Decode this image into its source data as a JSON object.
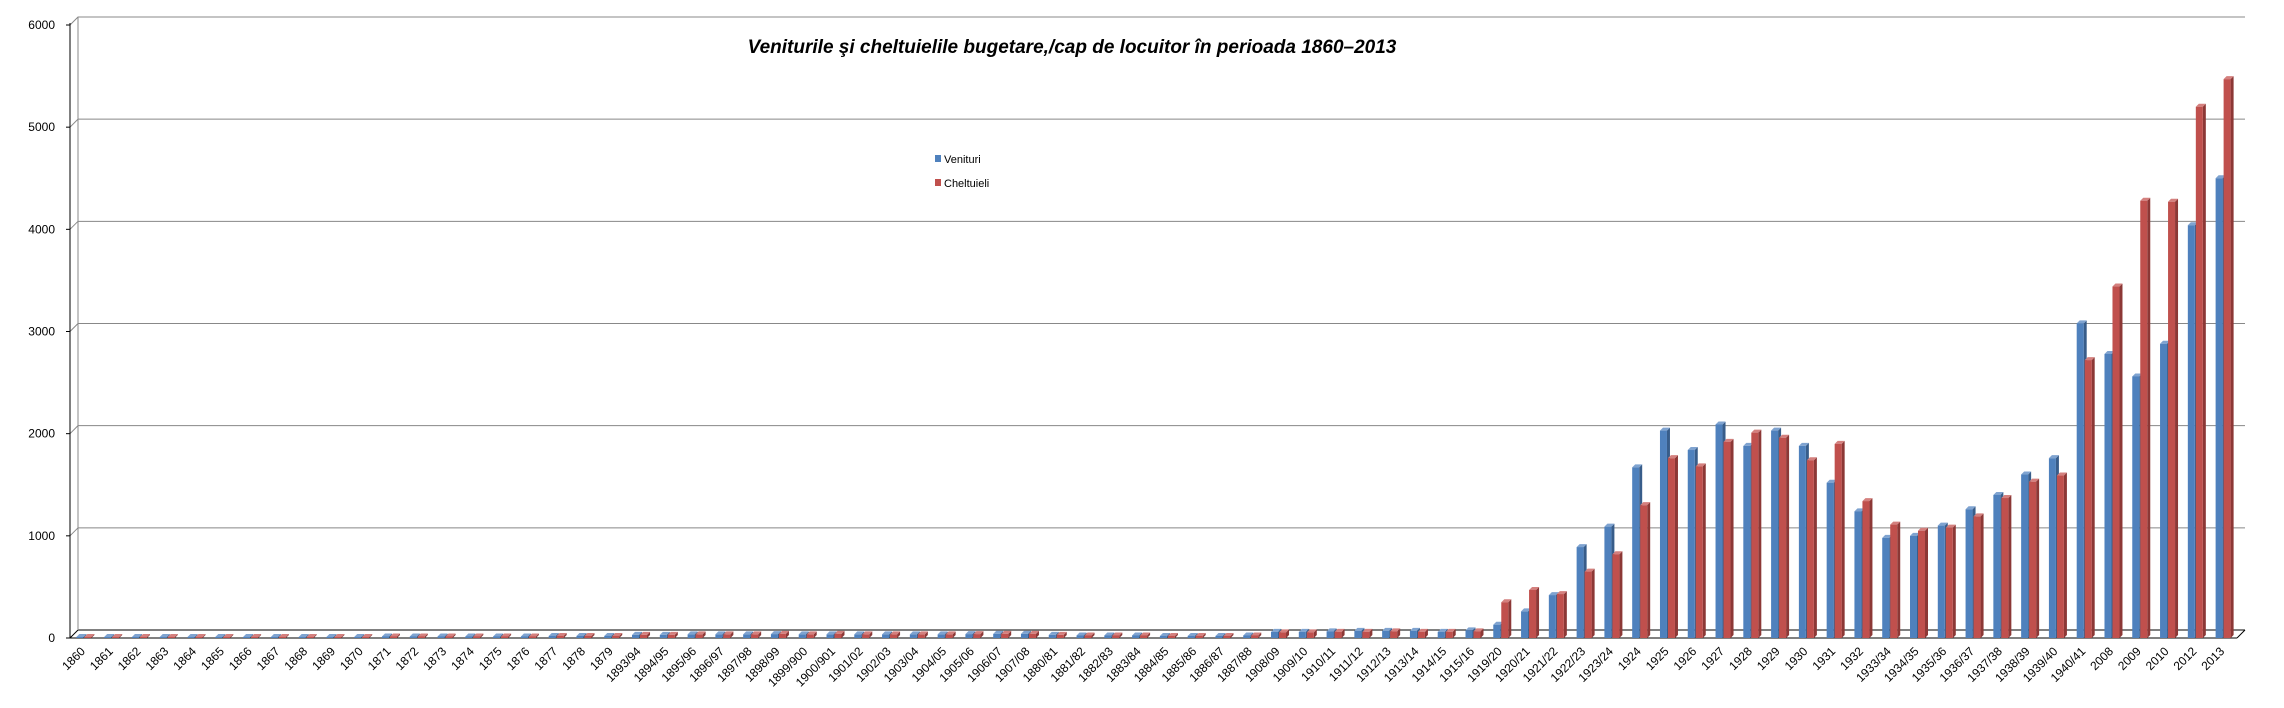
{
  "chart_data": {
    "type": "bar",
    "title": "Veniturile şi  cheltuielile bugetare,/cap de locuitor  în perioada 1860–2013",
    "xlabel": "",
    "ylabel": "",
    "ylim": [
      0,
      6000
    ],
    "yticks": [
      0,
      1000,
      2000,
      3000,
      4000,
      5000,
      6000
    ],
    "grid": true,
    "legend_position": "top-center",
    "colors": {
      "venituri": "#4F81BD",
      "cheltuieli": "#C0504D"
    },
    "categories": [
      "1860",
      "1861",
      "1862",
      "1863",
      "1864",
      "1865",
      "1866",
      "1867",
      "1868",
      "1869",
      "1870",
      "1871",
      "1872",
      "1873",
      "1874",
      "1875",
      "1876",
      "1877",
      "1878",
      "1879",
      "1893/94",
      "1894/95",
      "1895/96",
      "1896/97",
      "1897/98",
      "1898/99",
      "1899/900",
      "1900/901",
      "1901/02",
      "1902/03",
      "1903/04",
      "1904/05",
      "1905/06",
      "1906/07",
      "1907/08",
      "1880/81",
      "1881/82",
      "1882/83",
      "1883/84",
      "1884/85",
      "1885/86",
      "1886/87",
      "1887/88",
      "1908/09",
      "1909/10",
      "1910/11",
      "1911/12",
      "1912/13",
      "1913/14",
      "1914/15",
      "1915/16",
      "1919/20",
      "1920/21",
      "1921/22",
      "1922/23",
      "1923/24",
      "1924",
      "1925",
      "1926",
      "1927",
      "1928",
      "1929",
      "1930",
      "1931",
      "1932",
      "1933/34",
      "1934/35",
      "1935/36",
      "1936/37",
      "1937/38",
      "1938/39",
      "1939/40",
      "1940/41",
      "2008",
      "2009",
      "2010",
      "2012",
      "2013"
    ],
    "series": [
      {
        "name": "Venituri",
        "values": [
          10,
          10,
          10,
          10,
          10,
          10,
          10,
          10,
          10,
          10,
          10,
          15,
          15,
          15,
          15,
          15,
          15,
          20,
          20,
          20,
          30,
          30,
          35,
          35,
          35,
          38,
          35,
          35,
          35,
          35,
          35,
          35,
          38,
          40,
          40,
          30,
          25,
          25,
          25,
          20,
          20,
          20,
          25,
          60,
          60,
          65,
          70,
          70,
          70,
          60,
          75,
          130,
          260,
          420,
          890,
          1090,
          1670,
          2030,
          1840,
          2090,
          1880,
          2030,
          1880,
          1520,
          1240,
          980,
          1000,
          1100,
          1260,
          1400,
          1600,
          1760,
          3080,
          2780,
          2560,
          2880,
          4040,
          4500
        ]
      },
      {
        "name": "Cheltuieli",
        "values": [
          10,
          10,
          10,
          10,
          10,
          10,
          10,
          10,
          10,
          10,
          10,
          15,
          15,
          15,
          15,
          15,
          15,
          20,
          20,
          20,
          30,
          30,
          35,
          35,
          35,
          40,
          35,
          40,
          35,
          35,
          35,
          35,
          38,
          40,
          40,
          30,
          25,
          25,
          25,
          20,
          20,
          20,
          25,
          55,
          55,
          60,
          60,
          65,
          60,
          60,
          65,
          350,
          470,
          430,
          650,
          820,
          1300,
          1760,
          1680,
          1920,
          2010,
          1960,
          1740,
          1900,
          1340,
          1110,
          1050,
          1080,
          1190,
          1370,
          1530,
          1590,
          2720,
          3440,
          4280,
          4270,
          5200,
          5470
        ]
      }
    ]
  }
}
